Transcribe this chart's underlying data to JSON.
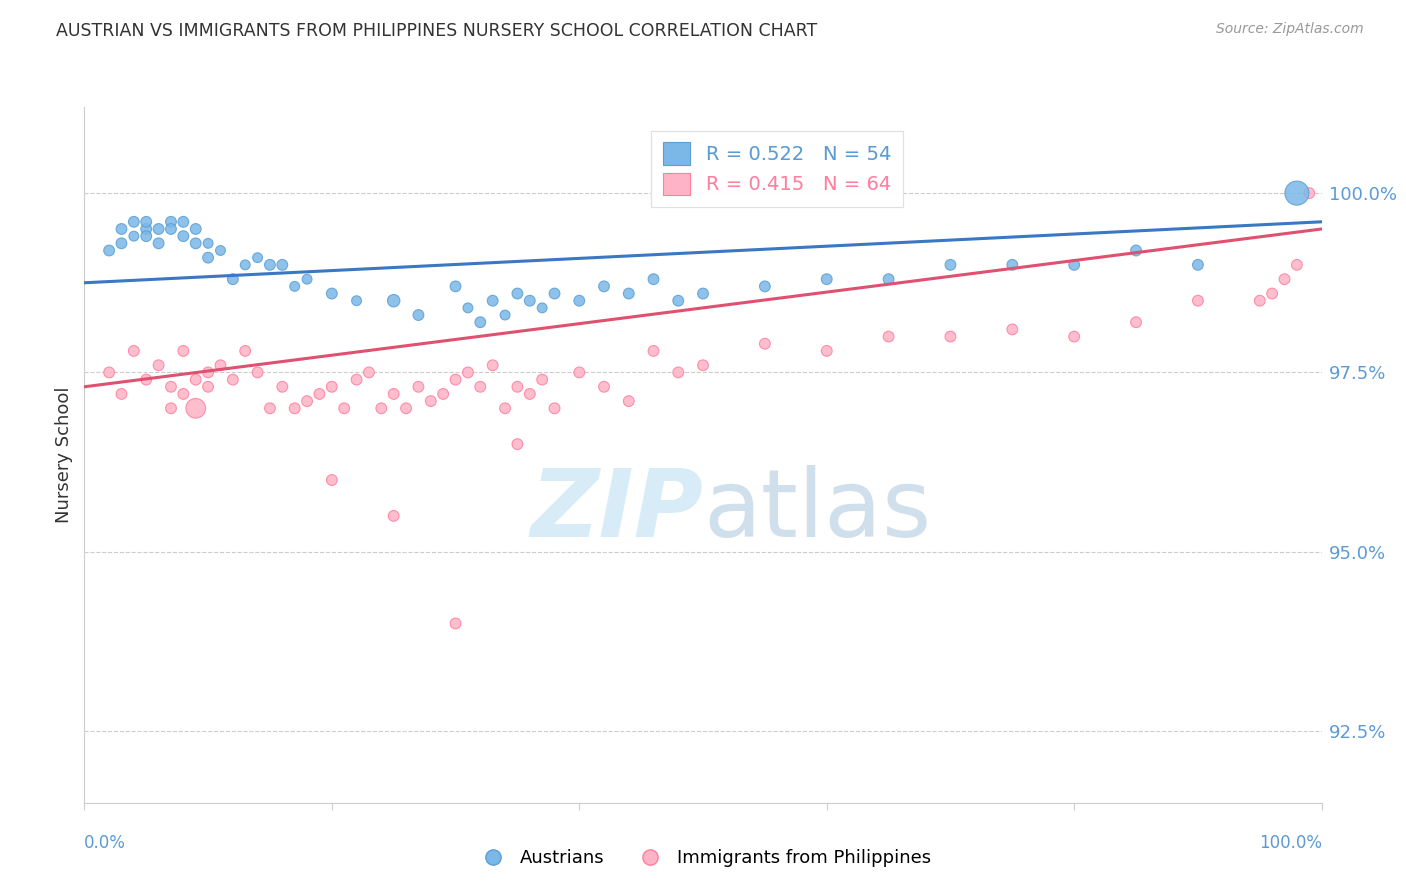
{
  "title": "AUSTRIAN VS IMMIGRANTS FROM PHILIPPINES NURSERY SCHOOL CORRELATION CHART",
  "source": "Source: ZipAtlas.com",
  "ylabel": "Nursery School",
  "yticks": [
    92.5,
    95.0,
    97.5,
    100.0
  ],
  "ytick_labels": [
    "92.5%",
    "95.0%",
    "97.5%",
    "100.0%"
  ],
  "xlim": [
    0.0,
    1.0
  ],
  "ylim": [
    91.5,
    101.2
  ],
  "legend_entries": [
    {
      "label": "R = 0.522   N = 54",
      "color": "#5B9BD5"
    },
    {
      "label": "R = 0.415   N = 64",
      "color": "#FF7F9F"
    }
  ],
  "legend_label_austrians": "Austrians",
  "legend_label_immigrants": "Immigrants from Philippines",
  "blue_scatter": {
    "x": [
      0.02,
      0.03,
      0.03,
      0.04,
      0.04,
      0.05,
      0.05,
      0.05,
      0.06,
      0.06,
      0.07,
      0.07,
      0.08,
      0.08,
      0.09,
      0.09,
      0.1,
      0.1,
      0.11,
      0.12,
      0.13,
      0.14,
      0.15,
      0.16,
      0.17,
      0.18,
      0.2,
      0.22,
      0.25,
      0.27,
      0.3,
      0.31,
      0.32,
      0.33,
      0.34,
      0.35,
      0.36,
      0.37,
      0.38,
      0.4,
      0.42,
      0.44,
      0.46,
      0.48,
      0.5,
      0.55,
      0.6,
      0.65,
      0.7,
      0.75,
      0.8,
      0.85,
      0.9,
      0.98
    ],
    "y": [
      99.2,
      99.5,
      99.3,
      99.6,
      99.4,
      99.5,
      99.6,
      99.4,
      99.5,
      99.3,
      99.6,
      99.5,
      99.6,
      99.4,
      99.5,
      99.3,
      99.3,
      99.1,
      99.2,
      98.8,
      99.0,
      99.1,
      99.0,
      99.0,
      98.7,
      98.8,
      98.6,
      98.5,
      98.5,
      98.3,
      98.7,
      98.4,
      98.2,
      98.5,
      98.3,
      98.6,
      98.5,
      98.4,
      98.6,
      98.5,
      98.7,
      98.6,
      98.8,
      98.5,
      98.6,
      98.7,
      98.8,
      98.8,
      99.0,
      99.0,
      99.0,
      99.2,
      99.0,
      100.0
    ],
    "sizes": [
      60,
      60,
      60,
      60,
      50,
      60,
      60,
      60,
      60,
      60,
      60,
      60,
      60,
      60,
      60,
      60,
      50,
      60,
      50,
      60,
      50,
      50,
      60,
      60,
      50,
      50,
      60,
      50,
      80,
      60,
      60,
      50,
      60,
      60,
      50,
      60,
      60,
      50,
      60,
      60,
      60,
      60,
      60,
      60,
      60,
      60,
      60,
      60,
      60,
      60,
      60,
      60,
      60,
      300
    ],
    "color": "#7BB8E8",
    "edge_color": "#5A9FD4"
  },
  "pink_scatter": {
    "x": [
      0.02,
      0.03,
      0.04,
      0.05,
      0.06,
      0.07,
      0.07,
      0.08,
      0.08,
      0.09,
      0.09,
      0.1,
      0.1,
      0.11,
      0.12,
      0.13,
      0.14,
      0.15,
      0.16,
      0.17,
      0.18,
      0.19,
      0.2,
      0.21,
      0.22,
      0.23,
      0.24,
      0.25,
      0.26,
      0.27,
      0.28,
      0.29,
      0.3,
      0.31,
      0.32,
      0.33,
      0.34,
      0.35,
      0.36,
      0.37,
      0.38,
      0.4,
      0.42,
      0.44,
      0.46,
      0.48,
      0.5,
      0.55,
      0.6,
      0.65,
      0.7,
      0.75,
      0.8,
      0.85,
      0.9,
      0.95,
      0.96,
      0.97,
      0.98,
      0.99,
      0.3,
      0.2,
      0.25,
      0.35
    ],
    "y": [
      97.5,
      97.2,
      97.8,
      97.4,
      97.6,
      97.3,
      97.0,
      97.2,
      97.8,
      97.0,
      97.4,
      97.5,
      97.3,
      97.6,
      97.4,
      97.8,
      97.5,
      97.0,
      97.3,
      97.0,
      97.1,
      97.2,
      97.3,
      97.0,
      97.4,
      97.5,
      97.0,
      97.2,
      97.0,
      97.3,
      97.1,
      97.2,
      97.4,
      97.5,
      97.3,
      97.6,
      97.0,
      97.3,
      97.2,
      97.4,
      97.0,
      97.5,
      97.3,
      97.1,
      97.8,
      97.5,
      97.6,
      97.9,
      97.8,
      98.0,
      98.0,
      98.1,
      98.0,
      98.2,
      98.5,
      98.5,
      98.6,
      98.8,
      99.0,
      100.0,
      94.0,
      96.0,
      95.5,
      96.5
    ],
    "sizes": [
      60,
      60,
      60,
      60,
      60,
      60,
      60,
      60,
      60,
      200,
      60,
      60,
      60,
      60,
      60,
      60,
      60,
      60,
      60,
      60,
      60,
      60,
      60,
      60,
      60,
      60,
      60,
      60,
      60,
      60,
      60,
      60,
      60,
      60,
      60,
      60,
      60,
      60,
      60,
      60,
      60,
      60,
      60,
      60,
      60,
      60,
      60,
      60,
      60,
      60,
      60,
      60,
      60,
      60,
      60,
      60,
      60,
      60,
      60,
      60,
      60,
      60,
      60,
      60
    ],
    "color": "#FFB3C6",
    "edge_color": "#FF7F9F"
  },
  "blue_line": {
    "x0": 0.0,
    "x1": 1.0,
    "y0": 98.75,
    "y1": 99.6
  },
  "pink_line": {
    "x0": 0.0,
    "x1": 1.0,
    "y0": 97.3,
    "y1": 99.5
  },
  "grid_color": "#CCCCCC",
  "background_color": "#FFFFFF",
  "title_color": "#333333",
  "tick_color": "#5B9BD5",
  "ylabel_color": "#333333"
}
